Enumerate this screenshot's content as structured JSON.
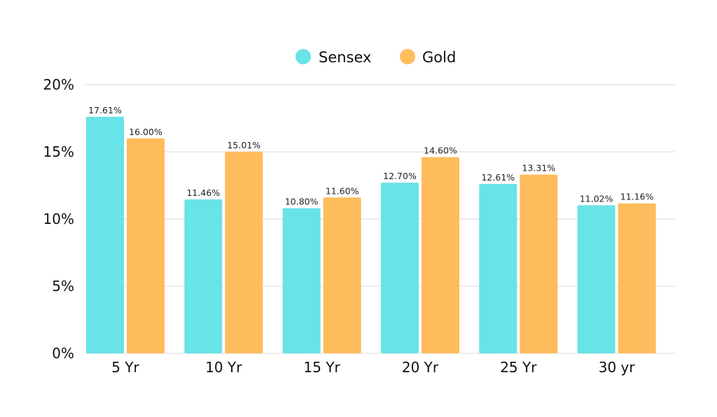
{
  "chart_data": {
    "type": "bar",
    "categories": [
      "5 Yr",
      "10 Yr",
      "15 Yr",
      "20 Yr",
      "25 Yr",
      "30 yr"
    ],
    "series": [
      {
        "name": "Sensex",
        "color": "#68E3E8",
        "values": [
          17.61,
          11.46,
          10.8,
          12.7,
          12.61,
          11.02
        ],
        "labels": [
          "17.61%",
          "11.46%",
          "10.80%",
          "12.70%",
          "12.61%",
          "11.02%"
        ]
      },
      {
        "name": "Gold",
        "color": "#FFBC5C",
        "values": [
          16.0,
          15.01,
          11.6,
          14.6,
          13.31,
          11.16
        ],
        "labels": [
          "16.00%",
          "15.01%",
          "11.60%",
          "14.60%",
          "13.31%",
          "11.16%"
        ]
      }
    ],
    "ylim": [
      0,
      20
    ],
    "yticks": [
      0,
      5,
      10,
      15,
      20
    ],
    "ytick_labels": [
      "0%",
      "5%",
      "10%",
      "15%",
      "20%"
    ],
    "grid": true,
    "legend_position": "top-center",
    "gridline_color": "#D9D9D9",
    "title": "",
    "xlabel": "",
    "ylabel": ""
  }
}
